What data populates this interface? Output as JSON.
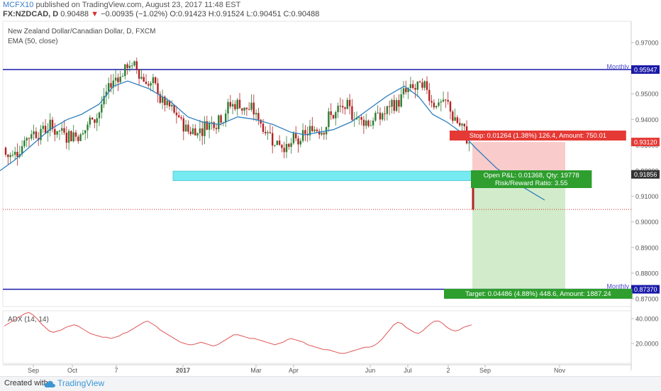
{
  "header": {
    "author": "MCFX10",
    "published": "published on TradingView.com, August 23, 2017 11:48 EST",
    "symbol": "FX:NZDCAD, D",
    "last": "0.90488",
    "change": "−0.00935 (−1.02%)",
    "ohlc": "O:0.91423 H:0.91524 L:0.90451 C:0.90488"
  },
  "legend": {
    "title": "New Zealand Dollar/Canadian Dollar, D, FXCM",
    "ema": "EMA (50, close)",
    "adx": "ADX (14, 14)"
  },
  "footer": {
    "made": "Created with",
    "brand": "TradingView"
  },
  "chart_data": {
    "type": "candlestick",
    "price_axis": {
      "ticks": [
        "0.97000",
        "0.96000",
        "0.95000",
        "0.94000",
        "0.93000",
        "0.92000",
        "0.91000",
        "0.90000",
        "0.89000",
        "0.88000",
        "0.87000"
      ]
    },
    "x_ticks": [
      "Sep",
      "Oct",
      "7",
      "2017",
      "Mar",
      "Apr",
      "Jun",
      "Jul",
      "2",
      "Sep",
      "Nov"
    ],
    "levels": [
      {
        "name": "Monthly",
        "value": 0.95947,
        "label": "0.95947",
        "color": "#1a1aa8"
      },
      {
        "name": "Monthly",
        "value": 0.8737,
        "label": "0.87370",
        "color": "#1a1aa8"
      }
    ],
    "price_labels": [
      {
        "value": 0.9312,
        "label": "0.93120",
        "color": "#e53935"
      },
      {
        "value": 0.91856,
        "label": "0.91856",
        "color": "#333333"
      }
    ],
    "support_zone": {
      "from": 0.9175,
      "to": 0.919
    },
    "current_price": 0.90488,
    "position": {
      "stop_text": "Stop: 0.01264 (1.38%) 126.4, Amount: 750.01",
      "open_text": "Open P&L: 0.01368, Qty: 19778",
      "rr_text": "Risk/Reward Ratio: 3.55",
      "target_text": "Target: 0.04486 (4.88%) 448.6, Amount: 1887.24",
      "entry": 0.91856,
      "stop": 0.9312,
      "target": 0.8737
    },
    "ema_points": [
      [
        0,
        0.92
      ],
      [
        20,
        0.924
      ],
      [
        45,
        0.93
      ],
      [
        70,
        0.936
      ],
      [
        95,
        0.94
      ],
      [
        115,
        0.942
      ],
      [
        140,
        0.946
      ],
      [
        160,
        0.953
      ],
      [
        180,
        0.955
      ],
      [
        210,
        0.952
      ],
      [
        240,
        0.947
      ],
      [
        265,
        0.941
      ],
      [
        285,
        0.939
      ],
      [
        310,
        0.938
      ],
      [
        335,
        0.941
      ],
      [
        360,
        0.94
      ],
      [
        385,
        0.938
      ],
      [
        410,
        0.935
      ],
      [
        430,
        0.934
      ],
      [
        450,
        0.935
      ],
      [
        470,
        0.936
      ],
      [
        495,
        0.939
      ],
      [
        520,
        0.944
      ],
      [
        545,
        0.949
      ],
      [
        570,
        0.953
      ],
      [
        590,
        0.949
      ],
      [
        610,
        0.942
      ],
      [
        630,
        0.939
      ],
      [
        650,
        0.935
      ],
      [
        670,
        0.929
      ],
      [
        700,
        0.921
      ],
      [
        735,
        0.914
      ],
      [
        768,
        0.9085
      ]
    ],
    "adx": {
      "ticks": [
        "40.0000",
        "20.0000"
      ],
      "range": [
        8,
        48
      ],
      "values": [
        34,
        36,
        38,
        40,
        42,
        44,
        45,
        43,
        40,
        36,
        33,
        30,
        29,
        30,
        31,
        33,
        34,
        35,
        34,
        32,
        30,
        28,
        27,
        26,
        25,
        25,
        24,
        25,
        26,
        28,
        29,
        31,
        33,
        35,
        37,
        38,
        36,
        34,
        31,
        29,
        27,
        25,
        23,
        21,
        20,
        19,
        19,
        20,
        21,
        20,
        19,
        18,
        19,
        21,
        23,
        25,
        27,
        27,
        26,
        25,
        24,
        24,
        23,
        22,
        21,
        20,
        19,
        20,
        21,
        23,
        24,
        23,
        22,
        21,
        19,
        18,
        17,
        16,
        15,
        15,
        14,
        13,
        12,
        12,
        13,
        14,
        15,
        16,
        17,
        17,
        18,
        20,
        23,
        27,
        31,
        35,
        37,
        36,
        33,
        31,
        29,
        28,
        30,
        33,
        36,
        38,
        38,
        36,
        33,
        31,
        30,
        31,
        33,
        34,
        35
      ]
    }
  }
}
